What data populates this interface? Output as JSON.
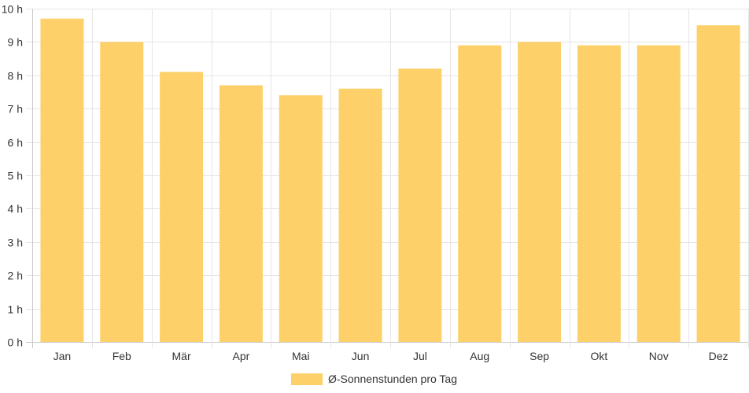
{
  "chart_data": {
    "type": "bar",
    "categories": [
      "Jan",
      "Feb",
      "Mär",
      "Apr",
      "Mai",
      "Jun",
      "Jul",
      "Aug",
      "Sep",
      "Okt",
      "Nov",
      "Dez"
    ],
    "series": [
      {
        "name": "Ø-Sonnenstunden pro Tag",
        "values": [
          9.7,
          9.0,
          8.1,
          7.7,
          7.4,
          7.6,
          8.2,
          8.9,
          9.0,
          8.9,
          8.9,
          9.5
        ],
        "color": "#fdd06a"
      }
    ],
    "ylim": [
      0,
      10
    ],
    "y_ticks": [
      "0 h",
      "1 h",
      "2 h",
      "3 h",
      "4 h",
      "5 h",
      "6 h",
      "7 h",
      "8 h",
      "9 h",
      "10 h"
    ],
    "grid": true,
    "legend_position": "bottom"
  }
}
